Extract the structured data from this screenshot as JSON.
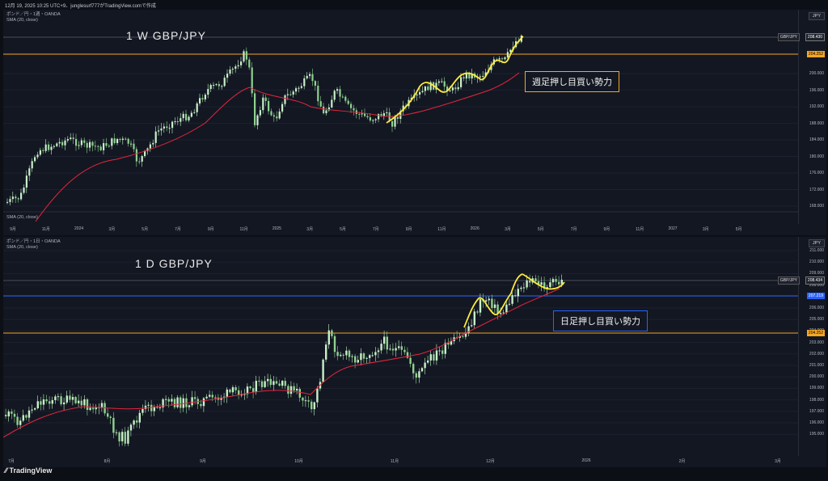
{
  "header": {
    "timestamp": "12月 19, 2025 10:25 UTC+9、junglesurf777がTradingView.comで作成"
  },
  "footer": {
    "brand": "TradingView",
    "logo_icon": "tradingview-logo-icon"
  },
  "colors": {
    "bull": "#c8f0c8",
    "bear": "#8fd18f",
    "sma": "#e6263c",
    "orange": "#f5a623",
    "blue": "#2962ff",
    "highlight": "#ffeb3b",
    "bg": "#131722"
  },
  "weekly": {
    "symbol_line": "ポンド／円・1週・OANDA",
    "sma_label": "SMA (20, close)",
    "sma_label_bottom": "SMA (20, close)",
    "title": "1 W GBP/JPY",
    "note": "週足押し目買い勢力",
    "currency": "JPY",
    "price_tag": "GBP/JPY",
    "last_price": "208.430",
    "level": "204.252",
    "y_ticks": [
      "200.000",
      "196.000",
      "192.000",
      "188.000",
      "184.000",
      "180.000",
      "176.000",
      "172.000",
      "168.000"
    ],
    "x_ticks": [
      "9月",
      "11月",
      "2024",
      "3月",
      "5月",
      "7月",
      "9月",
      "11月",
      "2025",
      "3月",
      "5月",
      "7月",
      "9月",
      "11月",
      "2026",
      "3月",
      "5月",
      "7月",
      "9月",
      "11月",
      "2027",
      "3月",
      "5月"
    ]
  },
  "daily": {
    "symbol_line": "ポンド／円・1日・OANDA",
    "sma_label": "SMA (20, close)",
    "title": "1 D GBP/JPY",
    "note": "日足押し目買い勢力",
    "currency": "JPY",
    "price_tag": "GBP/JPY",
    "last_price": "208.434",
    "level_blue": "207.219",
    "level_orange": "204.252",
    "y_ticks": [
      "211.000",
      "210.000",
      "209.000",
      "208.000",
      "207.000",
      "206.000",
      "205.000",
      "204.000",
      "203.000",
      "202.000",
      "201.000",
      "200.000",
      "199.000",
      "198.000",
      "197.000",
      "196.000",
      "195.000"
    ],
    "x_ticks": [
      "7月",
      "8月",
      "9月",
      "10月",
      "11月",
      "12月",
      "2026",
      "2月",
      "3月"
    ]
  }
}
